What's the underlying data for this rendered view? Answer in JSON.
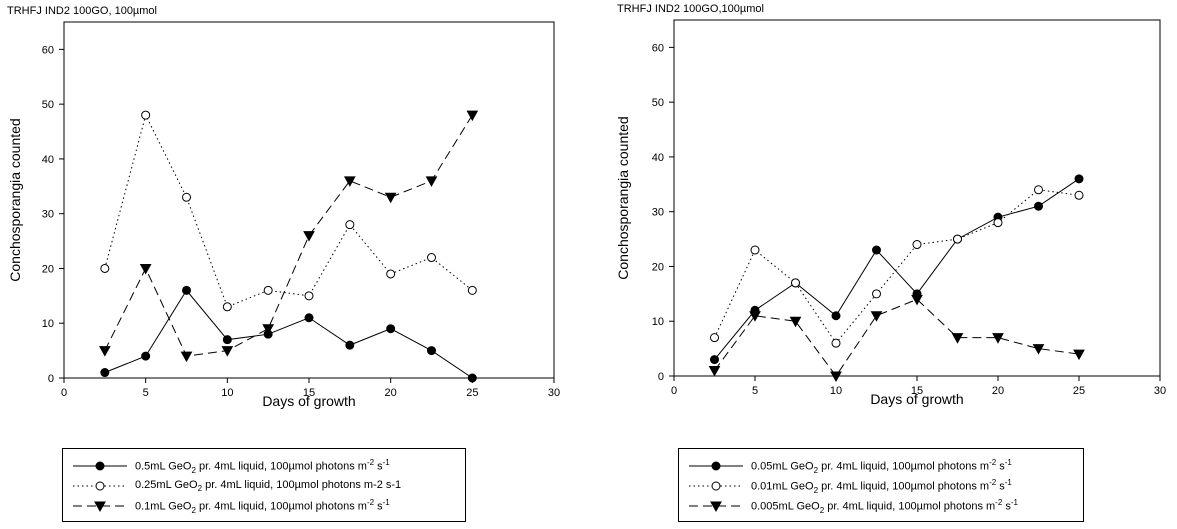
{
  "charts": [
    {
      "id": "left",
      "title": "TRHFJ IND2 100GO, 100µmol",
      "legend": [
        {
          "style": "solid-filled-circle",
          "parts": [
            {
              "t": "0.5mL GeO"
            },
            {
              "sub": "2"
            },
            {
              "t": " pr. 4mL liquid, 100µmol photons m"
            },
            {
              "sup": "-2"
            },
            {
              "t": " s"
            },
            {
              "sup": "-1"
            }
          ]
        },
        {
          "style": "dotted-open-circle",
          "parts": [
            {
              "t": "0.25mL GeO"
            },
            {
              "sub": "2"
            },
            {
              "t": " pr. 4mL liquid, 100µmol photons m-2 s-1"
            }
          ]
        },
        {
          "style": "dashed-filled-triangle",
          "parts": [
            {
              "t": "0.1mL GeO"
            },
            {
              "sub": "2"
            },
            {
              "t": " pr. 4mL liquid, 100µmol photons m"
            },
            {
              "sup": "-2"
            },
            {
              "t": " s"
            },
            {
              "sup": "-1"
            }
          ]
        }
      ]
    },
    {
      "id": "right",
      "title": "TRHFJ IND2 100GO,100µmol",
      "legend": [
        {
          "style": "solid-filled-circle",
          "parts": [
            {
              "t": "0.05mL GeO"
            },
            {
              "sub": "2"
            },
            {
              "t": " pr. 4mL liquid, 100µmol photons m"
            },
            {
              "sup": "-2"
            },
            {
              "t": " s"
            },
            {
              "sup": "-1"
            }
          ]
        },
        {
          "style": "dotted-open-circle",
          "parts": [
            {
              "t": "0.01mL GeO"
            },
            {
              "sub": "2"
            },
            {
              "t": " pr. 4mL liquid, 100µmol photons m"
            },
            {
              "sup": "-2"
            },
            {
              "t": " s"
            },
            {
              "sup": "-1"
            }
          ]
        },
        {
          "style": "dashed-filled-triangle",
          "parts": [
            {
              "t": "0.005mL GeO"
            },
            {
              "sub": "2"
            },
            {
              "t": " pr. 4mL liquid, 100µmol photons m"
            },
            {
              "sup": "-2"
            },
            {
              "t": " s"
            },
            {
              "sup": "-1"
            }
          ]
        }
      ]
    }
  ],
  "chart_data": [
    {
      "type": "line",
      "title": "TRHFJ IND2 100GO, 100µmol",
      "xlabel": "Days of growth",
      "ylabel": "Conchosporangia counted",
      "xlim": [
        0,
        30
      ],
      "ylim": [
        0,
        65
      ],
      "xticks": [
        0,
        5,
        10,
        15,
        20,
        25,
        30
      ],
      "yticks": [
        0,
        10,
        20,
        30,
        40,
        50,
        60
      ],
      "grid": false,
      "legend_position": "below",
      "x": [
        2.5,
        5,
        7.5,
        10,
        12.5,
        15,
        17.5,
        20,
        22.5,
        25
      ],
      "series": [
        {
          "name": "0.5mL GeO2 pr. 4mL liquid, 100µmol photons m-2 s-1",
          "style": "solid-filled-circle",
          "values": [
            1,
            4,
            16,
            7,
            8,
            11,
            6,
            9,
            5,
            0
          ]
        },
        {
          "name": "0.25mL GeO2 pr. 4mL liquid, 100µmol photons m-2 s-1",
          "style": "dotted-open-circle",
          "values": [
            20,
            48,
            33,
            13,
            16,
            15,
            28,
            19,
            22,
            16
          ]
        },
        {
          "name": "0.1mL GeO2 pr. 4mL liquid, 100µmol photons m-2 s-1",
          "style": "dashed-filled-triangle",
          "values": [
            5,
            20,
            4,
            5,
            9,
            26,
            36,
            33,
            36,
            48
          ]
        }
      ]
    },
    {
      "type": "line",
      "title": "TRHFJ IND2 100GO,100µmol",
      "xlabel": "Days of growth",
      "ylabel": "Conchosporangia counted",
      "xlim": [
        0,
        30
      ],
      "ylim": [
        0,
        65
      ],
      "xticks": [
        0,
        5,
        10,
        15,
        20,
        25,
        30
      ],
      "yticks": [
        0,
        10,
        20,
        30,
        40,
        50,
        60
      ],
      "grid": false,
      "legend_position": "below",
      "x": [
        2.5,
        5,
        7.5,
        10,
        12.5,
        15,
        17.5,
        20,
        22.5,
        25
      ],
      "series": [
        {
          "name": "0.05mL GeO2 pr. 4mL liquid, 100µmol photons m-2 s-1",
          "style": "solid-filled-circle",
          "values": [
            3,
            12,
            17,
            11,
            23,
            15,
            25,
            29,
            31,
            36
          ]
        },
        {
          "name": "0.01mL GeO2 pr. 4mL liquid, 100µmol photons m-2 s-1",
          "style": "dotted-open-circle",
          "values": [
            7,
            23,
            17,
            6,
            15,
            24,
            25,
            28,
            34,
            33
          ]
        },
        {
          "name": "0.005mL GeO2 pr. 4mL liquid, 100µmol photons m-2 s-1",
          "style": "dashed-filled-triangle",
          "values": [
            1,
            11,
            10,
            0,
            11,
            14,
            7,
            7,
            5,
            4
          ]
        }
      ]
    }
  ]
}
